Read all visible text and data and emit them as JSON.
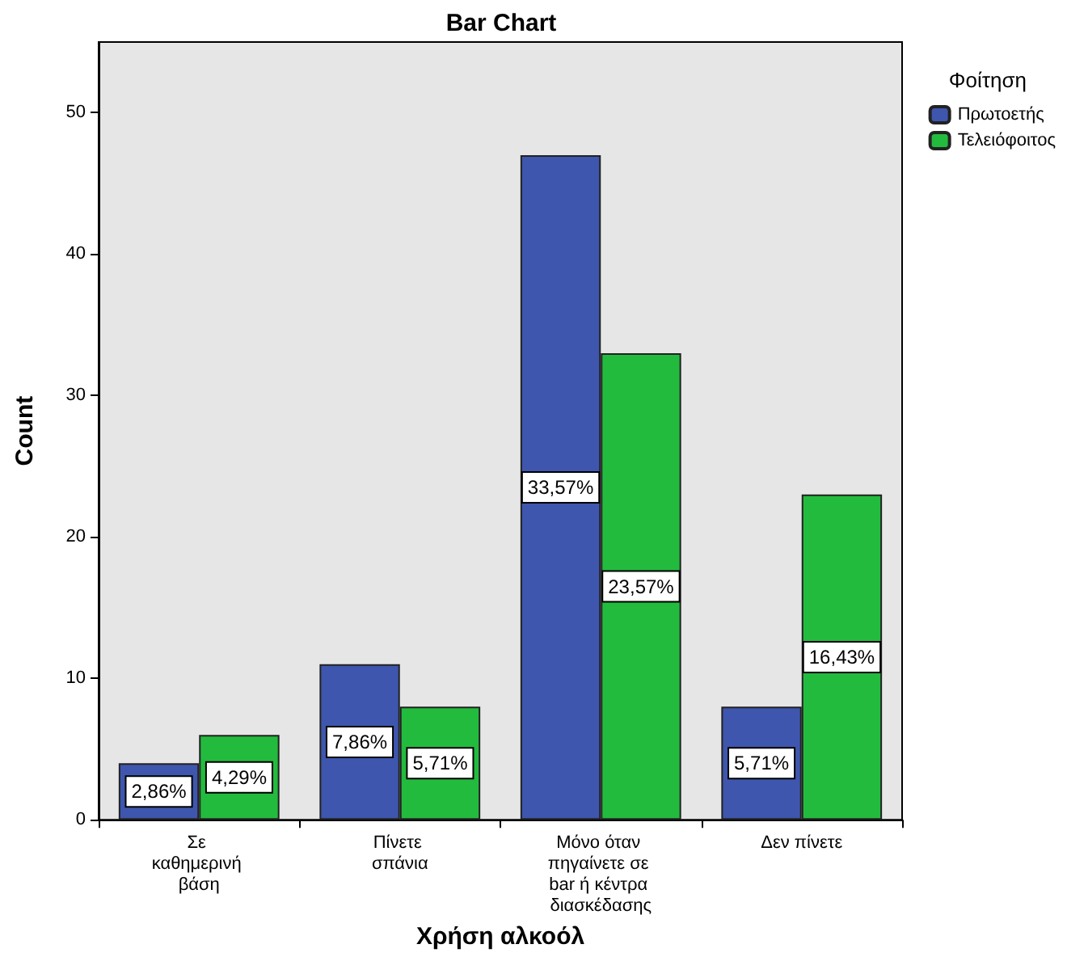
{
  "chart_data": {
    "type": "bar",
    "title": "Bar Chart",
    "xlabel": "Χρήση αλκοόλ",
    "ylabel": "Count",
    "legend_title": "Φοίτηση",
    "categories": [
      "Σε καθημερινή βάση",
      "Πίνετε σπάνια",
      "Μόνο όταν πηγαίνετε σε bar ή κέντρα διασκέδασης",
      "Δεν πίνετε"
    ],
    "series": [
      {
        "name": "Πρωτοετής",
        "color": "#3e56ad",
        "values": [
          4,
          11,
          47,
          8
        ]
      },
      {
        "name": "Τελειόφοιτος",
        "color": "#23bb3e",
        "values": [
          6,
          8,
          33,
          23
        ]
      }
    ],
    "annotations": [
      {
        "text": "2,86%",
        "x": "Σε καθημερινή βάση",
        "y": 2
      },
      {
        "text": "7,86%",
        "x": "Πίνετε σπάνια",
        "y": 5.5
      },
      {
        "text": "33,57%",
        "x": "Μόνο όταν πηγαίνετε σε bar ή κέντρα διασκέδασης",
        "y": 23.5
      },
      {
        "text": "5,71%",
        "x": "Δεν πίνετε",
        "y": 4
      },
      {
        "text": "4,29%",
        "x": "Σε καθημερινή βάση",
        "y": 3
      },
      {
        "text": "5,71%",
        "x": "Πίνετε σπάνια",
        "y": 4
      },
      {
        "text": "23,57%",
        "x": "Μόνο όταν πηγαίνετε σε bar ή κέντρα διασκέδασης",
        "y": 16.5
      },
      {
        "text": "16,43%",
        "x": "Δεν πίνετε",
        "y": 11.5
      }
    ],
    "ylim": [
      0,
      55
    ],
    "yticks": [
      0,
      10,
      20,
      30,
      40,
      50
    ],
    "grid": false,
    "legend": "top right"
  }
}
